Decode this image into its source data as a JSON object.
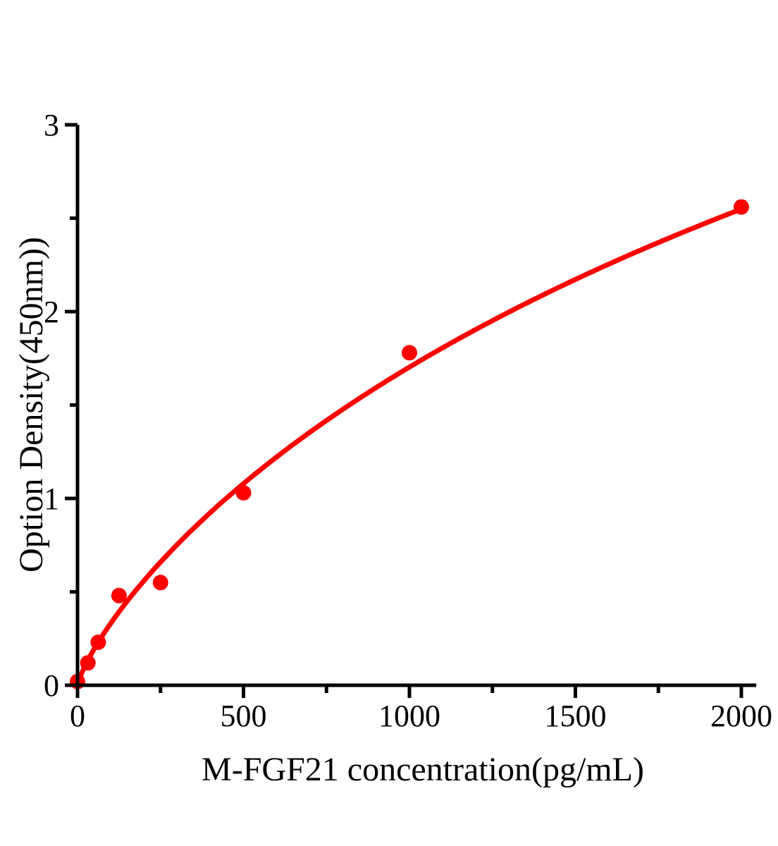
{
  "chart_data": {
    "type": "scatter",
    "title": "",
    "xlabel": "M-FGF21 concentration(pg/mL)",
    "ylabel": "Option Density(450nm))",
    "xlim": [
      0,
      2045
    ],
    "ylim": [
      0,
      3
    ],
    "x_major_ticks": [
      0,
      500,
      1000,
      1500,
      2000
    ],
    "x_minor_ticks": [
      250,
      750,
      1250,
      1750
    ],
    "y_major_ticks": [
      0,
      1,
      2,
      3
    ],
    "y_minor_ticks": [
      0.5,
      1.5,
      2.5
    ],
    "points": [
      {
        "x": 0,
        "y": 0.02
      },
      {
        "x": 31.25,
        "y": 0.12
      },
      {
        "x": 62.5,
        "y": 0.23
      },
      {
        "x": 125,
        "y": 0.48
      },
      {
        "x": 250,
        "y": 0.55
      },
      {
        "x": 500,
        "y": 1.03
      },
      {
        "x": 1000,
        "y": 1.78
      },
      {
        "x": 2000,
        "y": 2.56
      }
    ],
    "fit_curve": {
      "model": "hill",
      "a": 7.73,
      "B": 889,
      "n": 0.8,
      "x_start": 0,
      "x_end": 2000
    },
    "marker": {
      "shape": "circle",
      "radius_px": 11
    },
    "grid": false,
    "legend": null,
    "colors": {
      "series": "#ff0000",
      "axis": "#000000",
      "text": "#000000",
      "background": "#ffffff"
    }
  }
}
